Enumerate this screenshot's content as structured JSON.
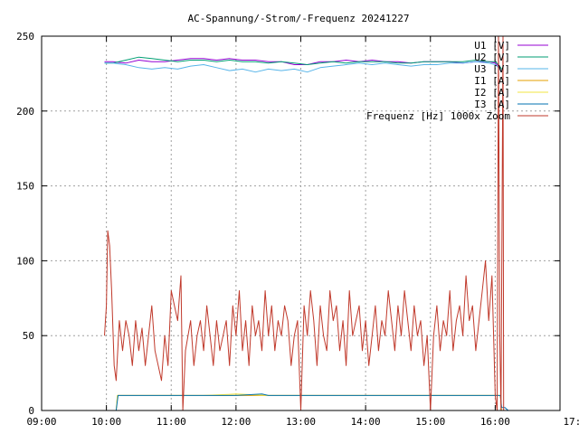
{
  "chart_data": {
    "type": "line",
    "title": "AC-Spannung/-Strom/-Frequenz 20241227",
    "xlabel": "",
    "ylabel": "",
    "xlim": [
      9,
      17
    ],
    "ylim": [
      0,
      250
    ],
    "x_ticks": [
      "09:00",
      "10:00",
      "11:00",
      "12:00",
      "13:00",
      "14:00",
      "15:00",
      "16:00",
      "17:00"
    ],
    "y_ticks": [
      "0",
      "50",
      "100",
      "150",
      "200",
      "250"
    ],
    "grid": true,
    "legend_position": "top-right",
    "series": [
      {
        "name": "U1 [V]",
        "color": "#9400d3",
        "points": [
          [
            9.97,
            233
          ],
          [
            10.1,
            233
          ],
          [
            10.3,
            232
          ],
          [
            10.5,
            234
          ],
          [
            10.7,
            233
          ],
          [
            10.9,
            233
          ],
          [
            11.1,
            234
          ],
          [
            11.3,
            235
          ],
          [
            11.5,
            235
          ],
          [
            11.7,
            234
          ],
          [
            11.9,
            235
          ],
          [
            12.1,
            234
          ],
          [
            12.3,
            234
          ],
          [
            12.5,
            233
          ],
          [
            12.7,
            233
          ],
          [
            12.9,
            231
          ],
          [
            13.1,
            231
          ],
          [
            13.3,
            233
          ],
          [
            13.5,
            233
          ],
          [
            13.7,
            234
          ],
          [
            13.9,
            233
          ],
          [
            14.1,
            234
          ],
          [
            14.3,
            233
          ],
          [
            14.5,
            233
          ],
          [
            14.7,
            232
          ],
          [
            14.9,
            233
          ],
          [
            15.1,
            233
          ],
          [
            15.3,
            233
          ],
          [
            15.5,
            232
          ],
          [
            15.7,
            233
          ],
          [
            15.9,
            233
          ],
          [
            16.0,
            232
          ],
          [
            16.05,
            230
          ],
          [
            16.1,
            226
          ]
        ]
      },
      {
        "name": "U2 [V]",
        "color": "#009e73",
        "points": [
          [
            9.97,
            232
          ],
          [
            10.1,
            232
          ],
          [
            10.3,
            234
          ],
          [
            10.5,
            236
          ],
          [
            10.7,
            235
          ],
          [
            10.9,
            234
          ],
          [
            11.1,
            233
          ],
          [
            11.3,
            234
          ],
          [
            11.5,
            234
          ],
          [
            11.7,
            233
          ],
          [
            11.9,
            234
          ],
          [
            12.1,
            233
          ],
          [
            12.3,
            233
          ],
          [
            12.5,
            232
          ],
          [
            12.7,
            233
          ],
          [
            12.9,
            232
          ],
          [
            13.1,
            231
          ],
          [
            13.3,
            232
          ],
          [
            13.5,
            233
          ],
          [
            13.7,
            232
          ],
          [
            13.9,
            233
          ],
          [
            14.1,
            233
          ],
          [
            14.3,
            233
          ],
          [
            14.5,
            232
          ],
          [
            14.7,
            232
          ],
          [
            14.9,
            233
          ],
          [
            15.1,
            233
          ],
          [
            15.3,
            233
          ],
          [
            15.5,
            233
          ],
          [
            15.7,
            234
          ],
          [
            15.9,
            233
          ],
          [
            16.0,
            233
          ],
          [
            16.05,
            231
          ],
          [
            16.1,
            228
          ]
        ]
      },
      {
        "name": "U3 [V]",
        "color": "#56b4e9",
        "points": [
          [
            9.97,
            232
          ],
          [
            10.1,
            232
          ],
          [
            10.3,
            231
          ],
          [
            10.5,
            229
          ],
          [
            10.7,
            228
          ],
          [
            10.9,
            229
          ],
          [
            11.1,
            228
          ],
          [
            11.3,
            230
          ],
          [
            11.5,
            231
          ],
          [
            11.7,
            229
          ],
          [
            11.9,
            227
          ],
          [
            12.1,
            228
          ],
          [
            12.3,
            226
          ],
          [
            12.5,
            228
          ],
          [
            12.7,
            227
          ],
          [
            12.9,
            228
          ],
          [
            13.1,
            226
          ],
          [
            13.3,
            229
          ],
          [
            13.5,
            230
          ],
          [
            13.7,
            231
          ],
          [
            13.9,
            232
          ],
          [
            14.1,
            231
          ],
          [
            14.3,
            232
          ],
          [
            14.5,
            231
          ],
          [
            14.7,
            230
          ],
          [
            14.9,
            231
          ],
          [
            15.1,
            231
          ],
          [
            15.3,
            232
          ],
          [
            15.5,
            232
          ],
          [
            15.7,
            233
          ],
          [
            15.9,
            232
          ],
          [
            16.0,
            231
          ],
          [
            16.05,
            229
          ],
          [
            16.1,
            226
          ]
        ]
      },
      {
        "name": "I1 [A]",
        "color": "#e69f00",
        "points": [
          [
            10.15,
            0
          ],
          [
            10.17,
            10
          ],
          [
            10.5,
            10
          ],
          [
            11,
            10
          ],
          [
            11.5,
            10
          ],
          [
            12,
            10
          ],
          [
            12.5,
            10
          ],
          [
            13,
            10
          ],
          [
            13.5,
            10
          ],
          [
            14,
            10
          ],
          [
            14.5,
            10
          ],
          [
            15,
            10
          ],
          [
            15.5,
            10
          ],
          [
            16,
            10
          ],
          [
            16.08,
            10
          ],
          [
            16.1,
            0
          ]
        ]
      },
      {
        "name": "I2 [A]",
        "color": "#f0e442",
        "points": [
          [
            10.15,
            0
          ],
          [
            10.17,
            10
          ],
          [
            10.5,
            10
          ],
          [
            11,
            10
          ],
          [
            11.5,
            10
          ],
          [
            12,
            11
          ],
          [
            12.5,
            10
          ],
          [
            13,
            10
          ],
          [
            13.5,
            10
          ],
          [
            14,
            10
          ],
          [
            14.5,
            10
          ],
          [
            15,
            10
          ],
          [
            15.5,
            10
          ],
          [
            16,
            10
          ],
          [
            16.08,
            10
          ],
          [
            16.1,
            0
          ]
        ]
      },
      {
        "name": "I3 [A]",
        "color": "#0072b2",
        "points": [
          [
            10.15,
            0
          ],
          [
            10.18,
            10
          ],
          [
            10.5,
            10
          ],
          [
            11,
            10
          ],
          [
            11.5,
            10
          ],
          [
            12,
            10
          ],
          [
            12.4,
            11
          ],
          [
            12.5,
            10
          ],
          [
            13,
            10
          ],
          [
            13.5,
            10
          ],
          [
            14,
            10
          ],
          [
            14.5,
            10
          ],
          [
            15,
            10
          ],
          [
            15.5,
            10
          ],
          [
            16,
            10
          ],
          [
            16.08,
            10
          ],
          [
            16.1,
            2
          ],
          [
            16.15,
            2
          ],
          [
            16.2,
            0
          ]
        ]
      },
      {
        "name": "Frequenz [Hz] 1000x Zoom",
        "color": "#c0392b",
        "points": [
          [
            9.97,
            50
          ],
          [
            10.0,
            70
          ],
          [
            10.02,
            120
          ],
          [
            10.05,
            110
          ],
          [
            10.08,
            80
          ],
          [
            10.12,
            30
          ],
          [
            10.15,
            20
          ],
          [
            10.2,
            60
          ],
          [
            10.25,
            40
          ],
          [
            10.3,
            60
          ],
          [
            10.35,
            50
          ],
          [
            10.4,
            30
          ],
          [
            10.45,
            60
          ],
          [
            10.5,
            40
          ],
          [
            10.55,
            55
          ],
          [
            10.6,
            30
          ],
          [
            10.65,
            50
          ],
          [
            10.7,
            70
          ],
          [
            10.75,
            40
          ],
          [
            10.8,
            30
          ],
          [
            10.85,
            20
          ],
          [
            10.9,
            50
          ],
          [
            10.95,
            30
          ],
          [
            11.0,
            80
          ],
          [
            11.05,
            70
          ],
          [
            11.1,
            60
          ],
          [
            11.15,
            90
          ],
          [
            11.18,
            0
          ],
          [
            11.22,
            40
          ],
          [
            11.3,
            60
          ],
          [
            11.35,
            30
          ],
          [
            11.4,
            50
          ],
          [
            11.45,
            60
          ],
          [
            11.5,
            40
          ],
          [
            11.55,
            70
          ],
          [
            11.6,
            50
          ],
          [
            11.65,
            30
          ],
          [
            11.7,
            60
          ],
          [
            11.75,
            40
          ],
          [
            11.8,
            50
          ],
          [
            11.85,
            60
          ],
          [
            11.9,
            30
          ],
          [
            11.95,
            70
          ],
          [
            12.0,
            50
          ],
          [
            12.05,
            80
          ],
          [
            12.1,
            40
          ],
          [
            12.15,
            60
          ],
          [
            12.2,
            30
          ],
          [
            12.25,
            70
          ],
          [
            12.3,
            50
          ],
          [
            12.35,
            60
          ],
          [
            12.4,
            40
          ],
          [
            12.45,
            80
          ],
          [
            12.5,
            50
          ],
          [
            12.55,
            70
          ],
          [
            12.6,
            40
          ],
          [
            12.65,
            60
          ],
          [
            12.7,
            50
          ],
          [
            12.75,
            70
          ],
          [
            12.8,
            60
          ],
          [
            12.85,
            30
          ],
          [
            12.9,
            50
          ],
          [
            12.95,
            60
          ],
          [
            13.0,
            0
          ],
          [
            13.05,
            70
          ],
          [
            13.1,
            50
          ],
          [
            13.15,
            80
          ],
          [
            13.2,
            60
          ],
          [
            13.25,
            30
          ],
          [
            13.3,
            70
          ],
          [
            13.35,
            50
          ],
          [
            13.4,
            40
          ],
          [
            13.45,
            80
          ],
          [
            13.5,
            60
          ],
          [
            13.55,
            70
          ],
          [
            13.6,
            40
          ],
          [
            13.65,
            60
          ],
          [
            13.7,
            30
          ],
          [
            13.75,
            80
          ],
          [
            13.8,
            50
          ],
          [
            13.85,
            60
          ],
          [
            13.9,
            70
          ],
          [
            13.95,
            40
          ],
          [
            14.0,
            60
          ],
          [
            14.05,
            30
          ],
          [
            14.1,
            50
          ],
          [
            14.15,
            70
          ],
          [
            14.2,
            40
          ],
          [
            14.25,
            60
          ],
          [
            14.3,
            50
          ],
          [
            14.35,
            80
          ],
          [
            14.4,
            60
          ],
          [
            14.45,
            40
          ],
          [
            14.5,
            70
          ],
          [
            14.55,
            50
          ],
          [
            14.6,
            80
          ],
          [
            14.65,
            60
          ],
          [
            14.7,
            40
          ],
          [
            14.75,
            70
          ],
          [
            14.8,
            50
          ],
          [
            14.85,
            60
          ],
          [
            14.9,
            30
          ],
          [
            14.95,
            50
          ],
          [
            15.0,
            0
          ],
          [
            15.05,
            50
          ],
          [
            15.1,
            70
          ],
          [
            15.15,
            40
          ],
          [
            15.2,
            60
          ],
          [
            15.25,
            50
          ],
          [
            15.3,
            80
          ],
          [
            15.35,
            40
          ],
          [
            15.4,
            60
          ],
          [
            15.45,
            70
          ],
          [
            15.5,
            50
          ],
          [
            15.55,
            90
          ],
          [
            15.6,
            60
          ],
          [
            15.65,
            70
          ],
          [
            15.7,
            40
          ],
          [
            15.75,
            60
          ],
          [
            15.8,
            80
          ],
          [
            15.85,
            100
          ],
          [
            15.9,
            60
          ],
          [
            15.95,
            90
          ],
          [
            16.0,
            10
          ],
          [
            16.03,
            0
          ],
          [
            16.05,
            250
          ],
          [
            16.07,
            50
          ],
          [
            16.09,
            0
          ],
          [
            16.12,
            250
          ],
          [
            16.13,
            0
          ]
        ]
      }
    ]
  }
}
